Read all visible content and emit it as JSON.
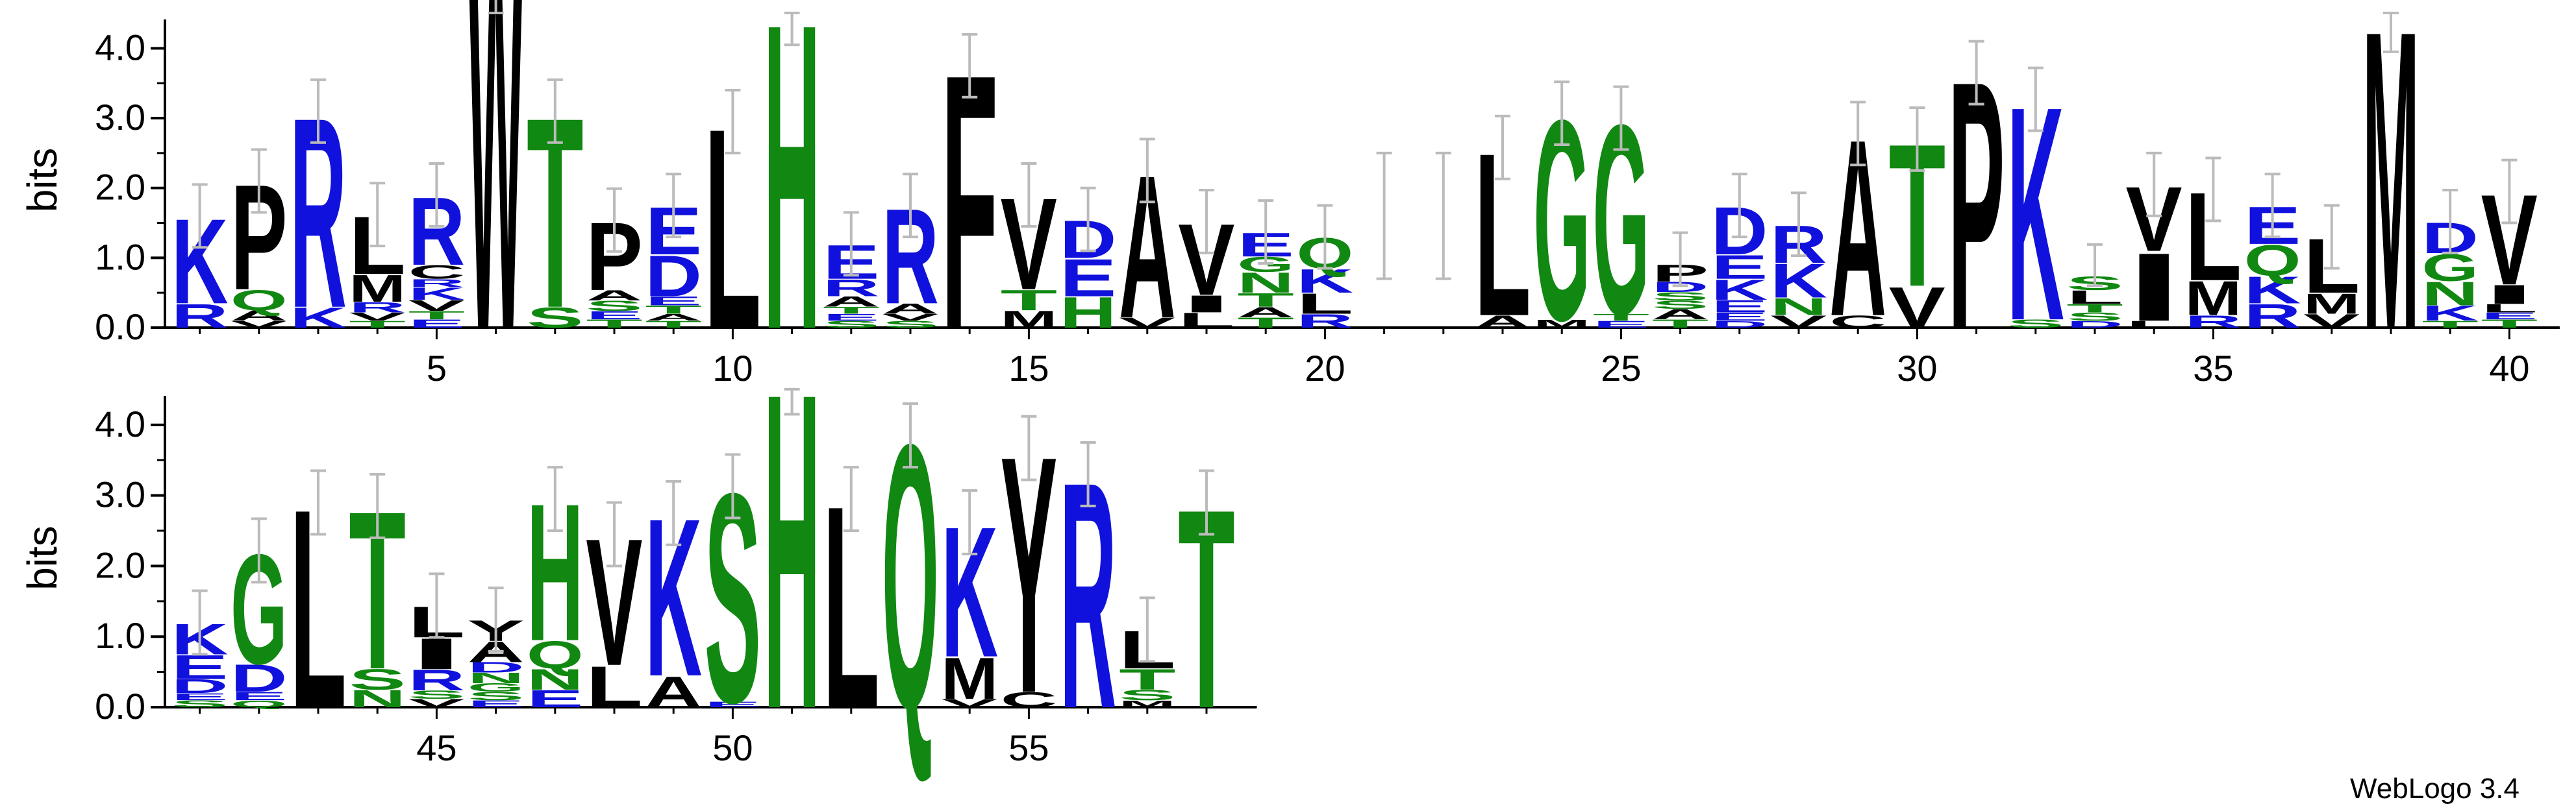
{
  "chart_data": {
    "type": "sequence-logo",
    "ylabel": "bits",
    "ylim": [
      0,
      4.32
    ],
    "yticks": [
      "0.0",
      "1.0",
      "2.0",
      "3.0",
      "4.0"
    ],
    "xtick_labels": [
      5,
      10,
      15,
      20,
      25,
      30,
      35,
      40,
      45,
      50,
      55
    ],
    "credit": "WebLogo 3.4",
    "colors": {
      "hydrophobic": "#000000",
      "polar": "#118811",
      "charged": "#1111dd"
    },
    "color_classes": {
      "hydrophobic": "ACFILMPVWY",
      "polar": "GHNQST",
      "charged": "DEKR"
    },
    "rows": [
      {
        "start": 1,
        "end": 40
      },
      {
        "start": 41,
        "end": 58
      }
    ],
    "positions": [
      {
        "pos": 1,
        "stack": [
          [
            "R",
            0.35
          ],
          [
            "K",
            1.25
          ]
        ]
      },
      {
        "pos": 2,
        "stack": [
          [
            "V",
            0.1
          ],
          [
            "A",
            0.15
          ],
          [
            "Q",
            0.3
          ],
          [
            "P",
            1.55
          ]
        ]
      },
      {
        "pos": 3,
        "stack": [
          [
            "K",
            0.3
          ],
          [
            "R",
            2.8
          ]
        ]
      },
      {
        "pos": 4,
        "stack": [
          [
            "T",
            0.1
          ],
          [
            "V",
            0.12
          ],
          [
            "R",
            0.15
          ],
          [
            "M",
            0.4
          ],
          [
            "L",
            0.85
          ]
        ]
      },
      {
        "pos": 5,
        "stack": [
          [
            "E",
            0.12
          ],
          [
            "T",
            0.12
          ],
          [
            "V",
            0.16
          ],
          [
            "K",
            0.18
          ],
          [
            "R",
            0.12
          ],
          [
            "C",
            0.2
          ],
          [
            "R",
            1.0
          ]
        ]
      },
      {
        "pos": 6,
        "stack": [
          [
            "W",
            6.0
          ]
        ]
      },
      {
        "pos": 7,
        "stack": [
          [
            "S",
            0.3
          ],
          [
            "T",
            2.8
          ]
        ]
      },
      {
        "pos": 8,
        "stack": [
          [
            "T",
            0.12
          ],
          [
            "E",
            0.12
          ],
          [
            "S",
            0.15
          ],
          [
            "A",
            0.15
          ],
          [
            "P",
            1.0
          ]
        ]
      },
      {
        "pos": 9,
        "stack": [
          [
            "T",
            0.1
          ],
          [
            "A",
            0.1
          ],
          [
            "T",
            0.12
          ],
          [
            "E",
            0.13
          ],
          [
            "D",
            0.6
          ],
          [
            "E",
            0.7
          ]
        ]
      },
      {
        "pos": 10,
        "stack": [
          [
            "L",
            2.95
          ]
        ]
      },
      {
        "pos": 11,
        "stack": [
          [
            "H",
            4.5
          ]
        ]
      },
      {
        "pos": 12,
        "stack": [
          [
            "S",
            0.1
          ],
          [
            "E",
            0.1
          ],
          [
            "T",
            0.1
          ],
          [
            "A",
            0.15
          ],
          [
            "R",
            0.25
          ],
          [
            "E",
            0.5
          ]
        ]
      },
      {
        "pos": 13,
        "stack": [
          [
            "S",
            0.1
          ],
          [
            "V",
            0.1
          ],
          [
            "A",
            0.15
          ],
          [
            "R",
            1.4
          ]
        ]
      },
      {
        "pos": 14,
        "stack": [
          [
            "F",
            3.75
          ]
        ]
      },
      {
        "pos": 15,
        "stack": [
          [
            "M",
            0.25
          ],
          [
            "T",
            0.3
          ],
          [
            "V",
            1.35
          ]
        ]
      },
      {
        "pos": 16,
        "stack": [
          [
            "H",
            0.45
          ],
          [
            "E",
            0.55
          ],
          [
            "D",
            0.55
          ]
        ]
      },
      {
        "pos": 17,
        "stack": [
          [
            "V",
            0.15
          ],
          [
            "A",
            2.1
          ]
        ]
      },
      {
        "pos": 18,
        "stack": [
          [
            "L",
            0.22
          ],
          [
            "I",
            0.25
          ],
          [
            "V",
            1.05
          ]
        ]
      },
      {
        "pos": 19,
        "stack": [
          [
            "T",
            0.15
          ],
          [
            "A",
            0.15
          ],
          [
            "T",
            0.2
          ],
          [
            "N",
            0.3
          ],
          [
            "G",
            0.22
          ],
          [
            "E",
            0.35
          ]
        ]
      },
      {
        "pos": 20,
        "stack": [
          [
            "R",
            0.2
          ],
          [
            "L",
            0.3
          ],
          [
            "K",
            0.35
          ],
          [
            "Q",
            0.45
          ]
        ]
      },
      {
        "pos": 21,
        "stack": []
      },
      {
        "pos": 22,
        "stack": []
      },
      {
        "pos": 23,
        "stack": [
          [
            "A",
            0.18
          ],
          [
            "L",
            2.4
          ]
        ]
      },
      {
        "pos": 24,
        "stack": [
          [
            "M",
            0.12
          ],
          [
            "G",
            2.95
          ]
        ]
      },
      {
        "pos": 25,
        "stack": [
          [
            "E",
            0.1
          ],
          [
            "T",
            0.1
          ],
          [
            "G",
            2.8
          ]
        ]
      },
      {
        "pos": 26,
        "stack": [
          [
            "T",
            0.12
          ],
          [
            "A",
            0.15
          ],
          [
            "S",
            0.12
          ],
          [
            "S",
            0.12
          ],
          [
            "D",
            0.15
          ],
          [
            "P",
            0.25
          ]
        ]
      },
      {
        "pos": 27,
        "stack": [
          [
            "D",
            0.1
          ],
          [
            "E",
            0.12
          ],
          [
            "E",
            0.18
          ],
          [
            "K",
            0.3
          ],
          [
            "E",
            0.35
          ],
          [
            "D",
            0.7
          ]
        ]
      },
      {
        "pos": 28,
        "stack": [
          [
            "V",
            0.18
          ],
          [
            "N",
            0.25
          ],
          [
            "K",
            0.5
          ],
          [
            "R",
            0.55
          ]
        ]
      },
      {
        "pos": 29,
        "stack": [
          [
            "C",
            0.18
          ],
          [
            "A",
            2.6
          ]
        ]
      },
      {
        "pos": 30,
        "stack": [
          [
            "V",
            0.6
          ],
          [
            "T",
            2.1
          ]
        ]
      },
      {
        "pos": 31,
        "stack": [
          [
            "P",
            3.65
          ]
        ]
      },
      {
        "pos": 32,
        "stack": [
          [
            "S",
            0.12
          ],
          [
            "K",
            3.15
          ]
        ]
      },
      {
        "pos": 33,
        "stack": [
          [
            "D",
            0.1
          ],
          [
            "S",
            0.12
          ],
          [
            "T",
            0.12
          ],
          [
            "L",
            0.2
          ],
          [
            "S",
            0.2
          ]
        ]
      },
      {
        "pos": 34,
        "stack": [
          [
            "L",
            0.1
          ],
          [
            "I",
            1.0
          ],
          [
            "V",
            0.95
          ]
        ]
      },
      {
        "pos": 35,
        "stack": [
          [
            "R",
            0.18
          ],
          [
            "M",
            0.5
          ],
          [
            "L",
            1.3
          ]
        ]
      },
      {
        "pos": 36,
        "stack": [
          [
            "R",
            0.35
          ],
          [
            "K",
            0.4
          ],
          [
            "Q",
            0.45
          ],
          [
            "E",
            0.55
          ]
        ]
      },
      {
        "pos": 37,
        "stack": [
          [
            "V",
            0.2
          ],
          [
            "M",
            0.3
          ],
          [
            "L",
            0.8
          ]
        ]
      },
      {
        "pos": 38,
        "stack": [
          [
            "M",
            4.4
          ]
        ]
      },
      {
        "pos": 39,
        "stack": [
          [
            "T",
            0.1
          ],
          [
            "K",
            0.22
          ],
          [
            "N",
            0.35
          ],
          [
            "G",
            0.4
          ],
          [
            "D",
            0.45
          ]
        ]
      },
      {
        "pos": 40,
        "stack": [
          [
            "T",
            0.12
          ],
          [
            "E",
            0.1
          ],
          [
            "L",
            0.12
          ],
          [
            "I",
            0.28
          ],
          [
            "V",
            1.33
          ]
        ]
      },
      {
        "pos": 41,
        "stack": [
          [
            "S",
            0.1
          ],
          [
            "E",
            0.1
          ],
          [
            "D",
            0.2
          ],
          [
            "E",
            0.35
          ],
          [
            "K",
            0.45
          ]
        ]
      },
      {
        "pos": 42,
        "stack": [
          [
            "Q",
            0.1
          ],
          [
            "E",
            0.12
          ],
          [
            "D",
            0.4
          ],
          [
            "G",
            1.6
          ]
        ]
      },
      {
        "pos": 43,
        "stack": [
          [
            "L",
            2.9
          ]
        ]
      },
      {
        "pos": 44,
        "stack": [
          [
            "N",
            0.25
          ],
          [
            "S",
            0.3
          ],
          [
            "T",
            2.3
          ]
        ]
      },
      {
        "pos": 45,
        "stack": [
          [
            "V",
            0.12
          ],
          [
            "S",
            0.12
          ],
          [
            "R",
            0.3
          ],
          [
            "I",
            0.45
          ],
          [
            "L",
            0.45
          ]
        ]
      },
      {
        "pos": 46,
        "stack": [
          [
            "E",
            0.1
          ],
          [
            "S",
            0.12
          ],
          [
            "G",
            0.12
          ],
          [
            "N",
            0.15
          ],
          [
            "D",
            0.15
          ],
          [
            "A",
            0.3
          ],
          [
            "Y",
            0.3
          ]
        ]
      },
      {
        "pos": 47,
        "stack": [
          [
            "E",
            0.25
          ],
          [
            "N",
            0.3
          ],
          [
            "Q",
            0.4
          ],
          [
            "H",
            2.0
          ]
        ]
      },
      {
        "pos": 48,
        "stack": [
          [
            "L",
            0.6
          ],
          [
            "V",
            1.85
          ]
        ]
      },
      {
        "pos": 49,
        "stack": [
          [
            "A",
            0.45
          ],
          [
            "K",
            2.3
          ]
        ]
      },
      {
        "pos": 50,
        "stack": [
          [
            "E",
            0.08
          ],
          [
            "S",
            3.05
          ]
        ]
      },
      {
        "pos": 51,
        "stack": [
          [
            "H",
            4.6
          ]
        ]
      },
      {
        "pos": 52,
        "stack": [
          [
            "L",
            2.95
          ]
        ]
      },
      {
        "pos": 53,
        "stack": [
          [
            "Q",
            3.85
          ]
        ]
      },
      {
        "pos": 54,
        "stack": [
          [
            "V",
            0.12
          ],
          [
            "M",
            0.6
          ],
          [
            "K",
            1.9
          ]
        ]
      },
      {
        "pos": 55,
        "stack": [
          [
            "C",
            0.22
          ],
          [
            "Y",
            3.45
          ]
        ]
      },
      {
        "pos": 56,
        "stack": [
          [
            "R",
            3.3
          ]
        ]
      },
      {
        "pos": 57,
        "stack": [
          [
            "M",
            0.1
          ],
          [
            "S",
            0.15
          ],
          [
            "T",
            0.3
          ],
          [
            "L",
            0.55
          ]
        ]
      },
      {
        "pos": 58,
        "stack": [
          [
            "T",
            2.9
          ]
        ]
      }
    ]
  }
}
